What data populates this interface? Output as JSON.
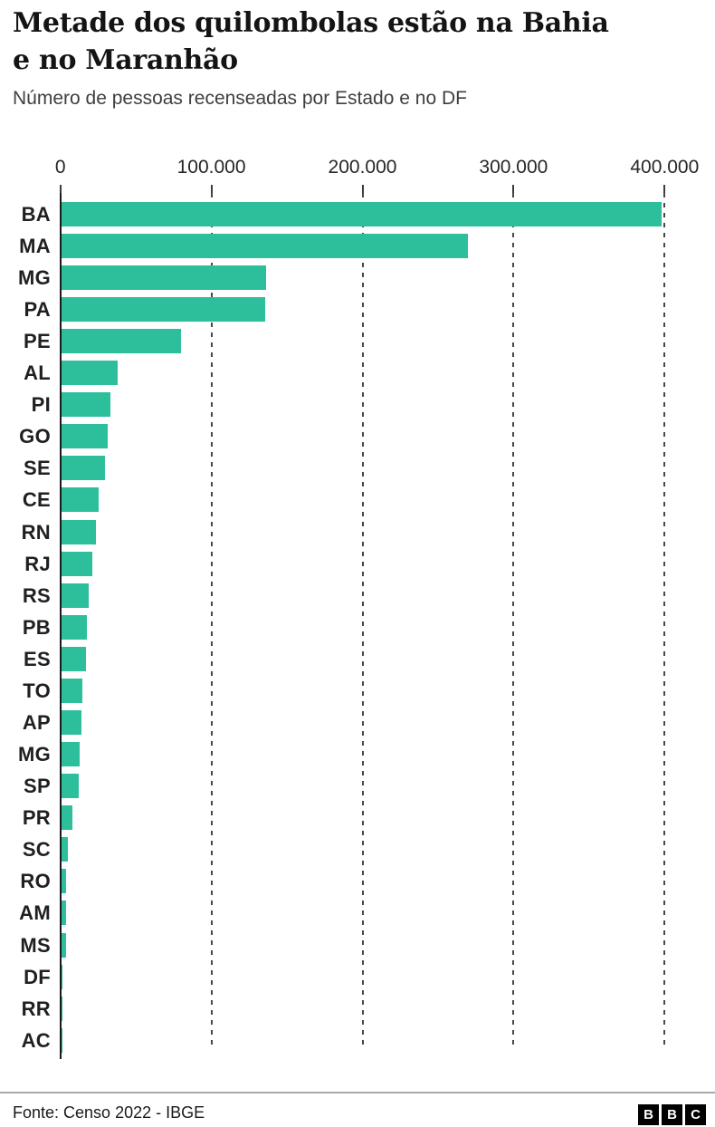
{
  "header": {
    "title_line1": "Metade dos quilombolas estão na Bahia",
    "title_line2": "e no Maranhão",
    "subtitle": "Número de pessoas recenseadas por Estado e no DF"
  },
  "chart_data": {
    "type": "bar",
    "orientation": "horizontal",
    "title": "Metade dos quilombolas estão na Bahia e no Maranhão",
    "subtitle": "Número de pessoas recenseadas por Estado e no DF",
    "xlabel": "",
    "ylabel": "",
    "xlim": [
      0,
      400000
    ],
    "x_ticks": [
      0,
      100000,
      200000,
      300000,
      400000
    ],
    "x_tick_labels": [
      "0",
      "100.000",
      "200.000",
      "300.000",
      "400.000"
    ],
    "grid": "vertical-dashed",
    "legend": "none",
    "bar_color": "#2dbe9b",
    "categories": [
      "BA",
      "MA",
      "MG",
      "PA",
      "PE",
      "AL",
      "PI",
      "GO",
      "SE",
      "CE",
      "RN",
      "RJ",
      "RS",
      "PB",
      "ES",
      "TO",
      "AP",
      "MG",
      "SP",
      "PR",
      "SC",
      "RO",
      "AM",
      "MS",
      "DF",
      "RR",
      "AC"
    ],
    "values": [
      397059,
      269074,
      135310,
      135033,
      78827,
      37196,
      32226,
      30387,
      28500,
      24600,
      22500,
      20400,
      18000,
      16900,
      16300,
      13700,
      13300,
      11900,
      11600,
      7300,
      4400,
      3200,
      2900,
      3200,
      400,
      150,
      100
    ]
  },
  "footer": {
    "source": "Fonte: Censo 2022 - IBGE",
    "logo_letters": [
      "B",
      "B",
      "C"
    ]
  },
  "colors": {
    "bar": "#2dbe9b",
    "title": "#141414",
    "subtitle": "#3f3f3f",
    "axis_line": "#1a1a1a",
    "gridline": "#474747",
    "divider": "#a9a9a9",
    "logo_bg": "#000000"
  }
}
